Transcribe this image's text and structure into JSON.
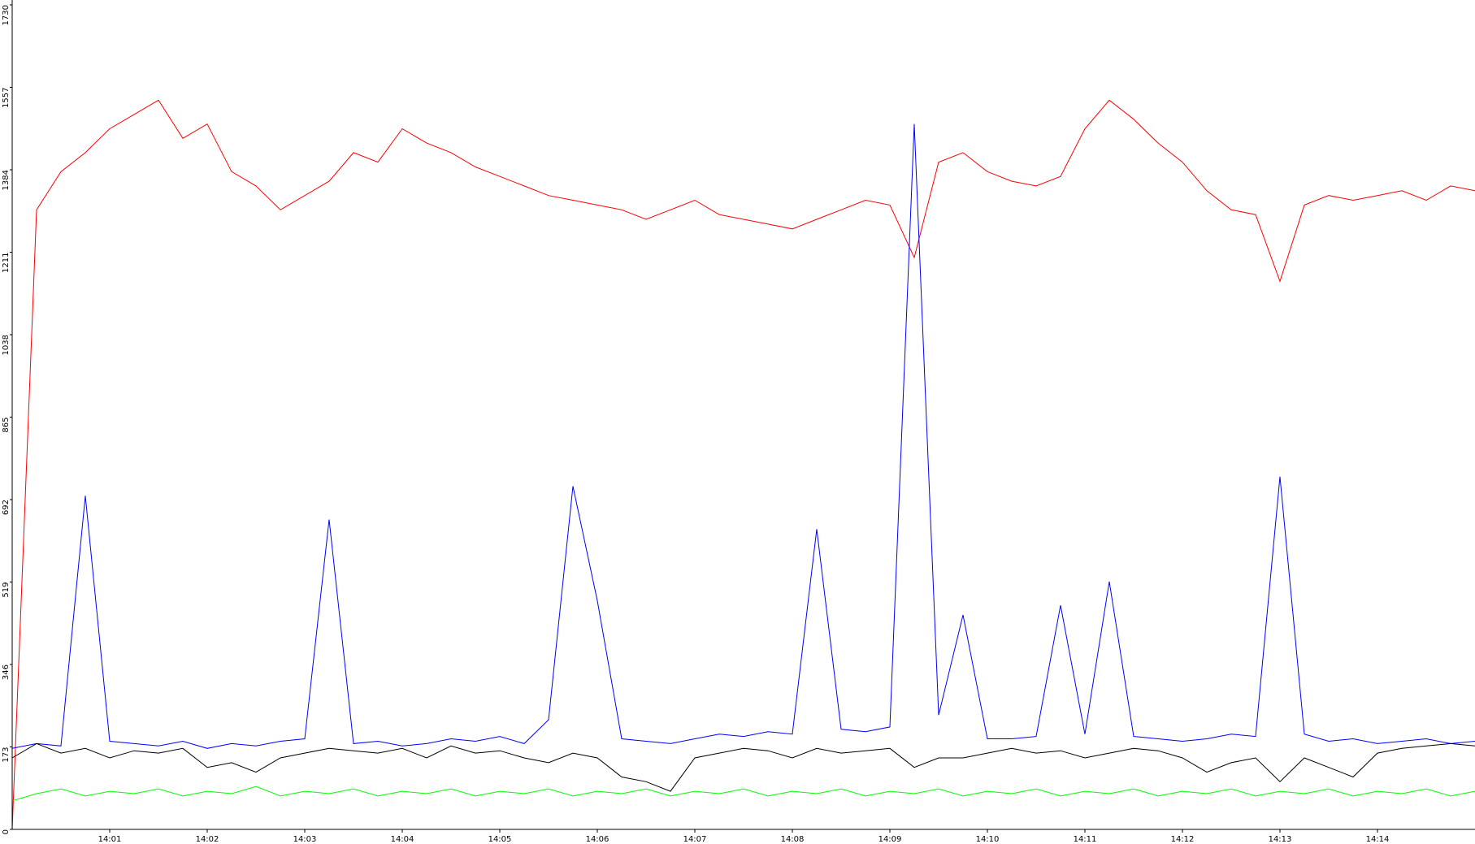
{
  "chart_data": {
    "type": "line",
    "x": [
      0,
      0.25,
      0.5,
      0.75,
      1,
      1.25,
      1.5,
      1.75,
      2,
      2.25,
      2.5,
      2.75,
      3,
      3.25,
      3.5,
      3.75,
      4,
      4.25,
      4.5,
      4.75,
      5,
      5.25,
      5.5,
      5.75,
      6,
      6.25,
      6.5,
      6.75,
      7,
      7.25,
      7.5,
      7.75,
      8,
      8.25,
      8.5,
      8.75,
      9,
      9.25,
      9.5,
      9.75,
      10,
      10.25,
      10.5,
      10.75,
      11,
      11.25,
      11.5,
      11.75,
      12,
      12.25,
      12.5,
      12.75,
      13,
      13.25,
      13.5,
      13.75,
      14,
      14.25,
      14.5,
      14.75,
      15
    ],
    "xlim": [
      0,
      15
    ],
    "xticks": [
      {
        "value": 1,
        "label": "14:01"
      },
      {
        "value": 2,
        "label": "14:02"
      },
      {
        "value": 3,
        "label": "14:03"
      },
      {
        "value": 4,
        "label": "14:04"
      },
      {
        "value": 5,
        "label": "14:05"
      },
      {
        "value": 6,
        "label": "14:06"
      },
      {
        "value": 7,
        "label": "14:07"
      },
      {
        "value": 8,
        "label": "14:08"
      },
      {
        "value": 9,
        "label": "14:09"
      },
      {
        "value": 10,
        "label": "14:10"
      },
      {
        "value": 11,
        "label": "14:11"
      },
      {
        "value": 12,
        "label": "14:12"
      },
      {
        "value": 13,
        "label": "14:13"
      },
      {
        "value": 14,
        "label": "14:14"
      }
    ],
    "ylim": [
      0,
      1730
    ],
    "yticks": [
      0,
      173,
      346,
      519,
      692,
      865,
      1038,
      1211,
      1384,
      1557,
      1730
    ],
    "series": [
      {
        "color": "#ff0000",
        "values": [
          0,
          1300,
          1380,
          1420,
          1470,
          1500,
          1530,
          1450,
          1480,
          1380,
          1350,
          1300,
          1330,
          1360,
          1420,
          1400,
          1470,
          1440,
          1420,
          1390,
          1370,
          1350,
          1330,
          1320,
          1310,
          1300,
          1280,
          1300,
          1320,
          1290,
          1280,
          1270,
          1260,
          1280,
          1300,
          1320,
          1310,
          1200,
          1400,
          1420,
          1380,
          1360,
          1350,
          1370,
          1470,
          1530,
          1490,
          1440,
          1400,
          1340,
          1300,
          1290,
          1150,
          1310,
          1330,
          1320,
          1330,
          1340,
          1320,
          1350,
          1340
        ]
      },
      {
        "color": "#0000ff",
        "values": [
          170,
          180,
          175,
          700,
          185,
          180,
          175,
          185,
          170,
          180,
          175,
          185,
          190,
          650,
          180,
          185,
          175,
          180,
          190,
          185,
          195,
          180,
          230,
          720,
          480,
          190,
          185,
          180,
          190,
          200,
          195,
          205,
          200,
          630,
          210,
          205,
          215,
          1480,
          240,
          450,
          190,
          190,
          195,
          470,
          200,
          520,
          195,
          190,
          185,
          190,
          200,
          195,
          740,
          200,
          185,
          190,
          180,
          185,
          190,
          180,
          185
        ]
      },
      {
        "color": "#000000",
        "values": [
          150,
          180,
          160,
          170,
          150,
          165,
          160,
          170,
          130,
          140,
          120,
          150,
          160,
          170,
          165,
          160,
          170,
          150,
          175,
          160,
          165,
          150,
          140,
          160,
          150,
          110,
          100,
          80,
          150,
          160,
          170,
          165,
          150,
          170,
          160,
          165,
          170,
          130,
          150,
          150,
          160,
          170,
          160,
          165,
          150,
          160,
          170,
          165,
          150,
          120,
          140,
          150,
          100,
          150,
          130,
          110,
          160,
          170,
          175,
          180,
          175
        ]
      },
      {
        "color": "#00ff00",
        "values": [
          60,
          75,
          85,
          70,
          80,
          75,
          85,
          70,
          80,
          75,
          90,
          70,
          80,
          75,
          85,
          70,
          80,
          75,
          85,
          70,
          80,
          75,
          85,
          70,
          80,
          75,
          85,
          70,
          80,
          75,
          85,
          70,
          80,
          75,
          85,
          70,
          80,
          75,
          85,
          70,
          80,
          75,
          85,
          70,
          80,
          75,
          85,
          70,
          80,
          75,
          85,
          70,
          80,
          75,
          85,
          70,
          80,
          75,
          85,
          70,
          80
        ]
      }
    ]
  }
}
